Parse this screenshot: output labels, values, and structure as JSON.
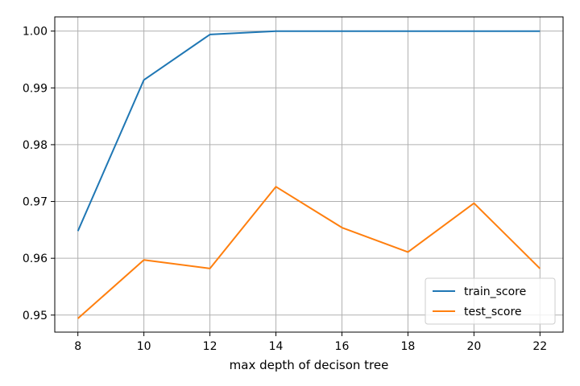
{
  "chart_data": {
    "type": "line",
    "title": "",
    "xlabel": "max depth of decison tree",
    "ylabel": "",
    "x": [
      8,
      10,
      12,
      14,
      16,
      18,
      20,
      22
    ],
    "xticks": [
      8,
      10,
      12,
      14,
      16,
      18,
      20,
      22
    ],
    "xtick_labels": [
      "8",
      "10",
      "12",
      "14",
      "16",
      "18",
      "20",
      "22"
    ],
    "yticks": [
      0.95,
      0.96,
      0.97,
      0.98,
      0.99,
      1.0
    ],
    "ytick_labels": [
      "0.95",
      "0.96",
      "0.97",
      "0.98",
      "0.99",
      "1.00"
    ],
    "xlim": [
      7.3,
      22.7
    ],
    "ylim": [
      0.947,
      1.0025
    ],
    "grid": true,
    "legend_position": "lower-right",
    "series": [
      {
        "name": "train_score",
        "color": "#1f77b4",
        "values": [
          0.9648,
          0.9914,
          0.9994,
          1.0,
          1.0,
          1.0,
          1.0,
          1.0
        ]
      },
      {
        "name": "test_score",
        "color": "#ff7f0e",
        "values": [
          0.9494,
          0.9597,
          0.9582,
          0.9726,
          0.9654,
          0.9611,
          0.9697,
          0.9582
        ]
      }
    ]
  }
}
